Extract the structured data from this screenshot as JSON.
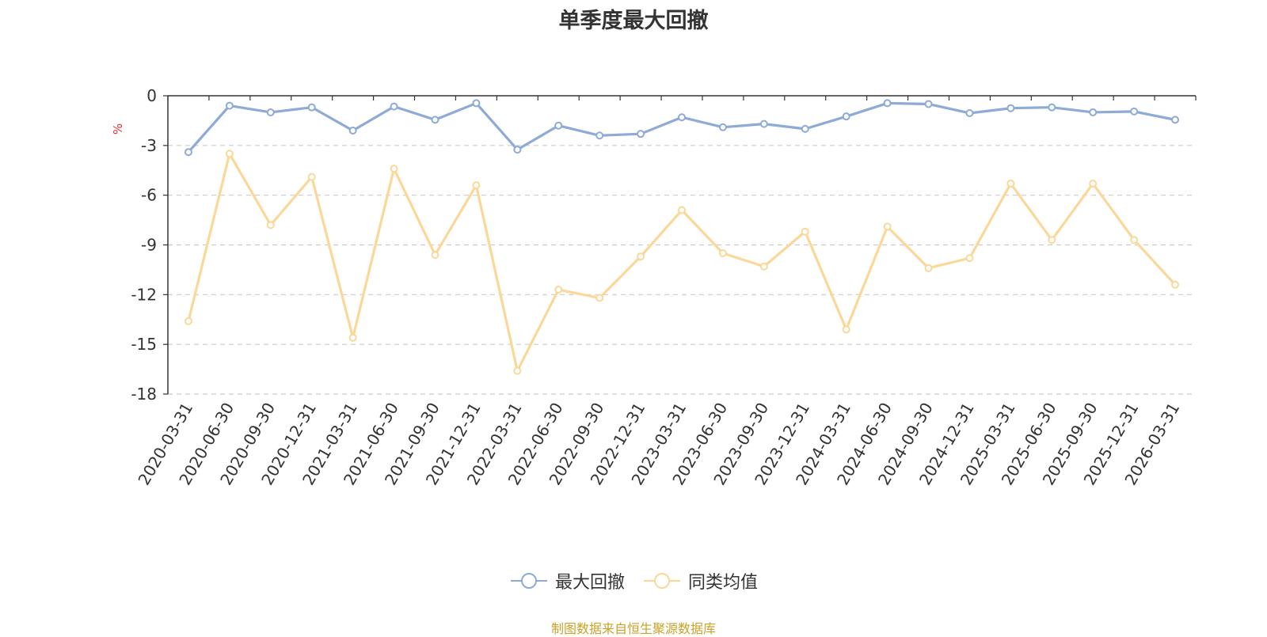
{
  "chart_data": {
    "type": "line",
    "title": "单季度最大回撤",
    "ylabel": "%",
    "ylim": [
      -18,
      0
    ],
    "yticks": [
      0,
      -3,
      -6,
      -9,
      -12,
      -15,
      -18
    ],
    "grid": "dashed horizontal",
    "legend_position": "bottom-center",
    "categories": [
      "2020-03-31",
      "2020-06-30",
      "2020-09-30",
      "2020-12-31",
      "2021-03-31",
      "2021-06-30",
      "2021-09-30",
      "2021-12-31",
      "2022-03-31",
      "2022-06-30",
      "2022-09-30",
      "2022-12-31",
      "2023-03-31",
      "2023-06-30",
      "2023-09-30",
      "2023-12-31",
      "2024-03-31",
      "2024-06-30",
      "2024-09-30",
      "2024-12-31",
      "2025-03-31",
      "2025-06-30",
      "2025-09-30",
      "2025-12-31",
      "2026-03-31"
    ],
    "series": [
      {
        "name": "最大回撤",
        "color": "#8eaad6",
        "values": [
          -3.4,
          -0.6,
          -1.0,
          -0.7,
          -2.1,
          -0.65,
          -1.45,
          -0.45,
          -3.25,
          -1.8,
          -2.4,
          -2.3,
          -1.3,
          -1.9,
          -1.7,
          -2.0,
          -1.25,
          -0.45,
          -0.5,
          -1.05,
          -0.75,
          -0.7,
          -1.0,
          -0.95,
          -1.45
        ]
      },
      {
        "name": "同类均值",
        "color": "#fbd89a",
        "values": [
          -13.6,
          -3.5,
          -7.8,
          -4.9,
          -14.6,
          -4.4,
          -9.6,
          -5.4,
          -16.6,
          -11.7,
          -12.2,
          -9.7,
          -6.9,
          -9.5,
          -10.3,
          -8.2,
          -14.1,
          -7.9,
          -10.4,
          -9.8,
          -5.3,
          -8.7,
          -5.3,
          -8.7,
          -11.4
        ]
      }
    ]
  },
  "source_text": "制图数据来自恒生聚源数据库"
}
